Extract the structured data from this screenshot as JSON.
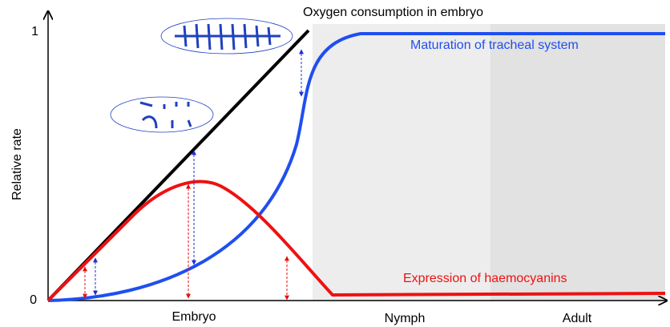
{
  "figure": {
    "title": "Oxygen consumption in embryo",
    "y_axis_label": "Relative rate",
    "y_tick_low": "0",
    "y_tick_high": "1",
    "stages": [
      "Embryo",
      "Nymph",
      "Adult"
    ],
    "curves": {
      "tracheal": "Maturation of tracheal system",
      "haemocyanins": "Expression of haemocyanins"
    }
  }
}
